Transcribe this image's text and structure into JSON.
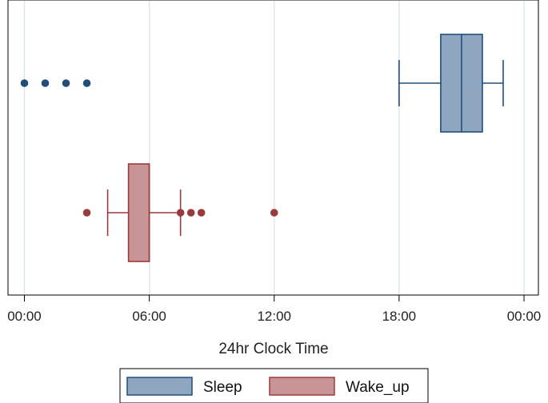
{
  "chart_data": {
    "type": "boxplot",
    "orientation": "horizontal",
    "xlabel": "24hr Clock Time",
    "x_unit": "hours",
    "xlim": [
      -0.3,
      24.7
    ],
    "x_ticks": [
      {
        "value": 0,
        "label": "00:00"
      },
      {
        "value": 6,
        "label": "06:00"
      },
      {
        "value": 12,
        "label": "12:00"
      },
      {
        "value": 18,
        "label": "18:00"
      },
      {
        "value": 24,
        "label": "00:00"
      }
    ],
    "grid": true,
    "legend_position": "bottom",
    "series": [
      {
        "name": "Sleep",
        "color": "#1f4e79",
        "fill": "#8fa6c0",
        "whisker_low": 18.0,
        "q1": 20.0,
        "median": 21.0,
        "q3": 22.0,
        "whisker_high": 23.0,
        "outliers": [
          0.0,
          1.0,
          2.0,
          3.0
        ]
      },
      {
        "name": "Wake_up",
        "color": "#9a3b3b",
        "fill": "#c99496",
        "whisker_low": 4.0,
        "q1": 5.0,
        "median": 6.0,
        "q3": 6.0,
        "whisker_high": 7.5,
        "outliers": [
          3.0,
          7.5,
          8.0,
          8.5,
          12.0
        ]
      }
    ]
  }
}
